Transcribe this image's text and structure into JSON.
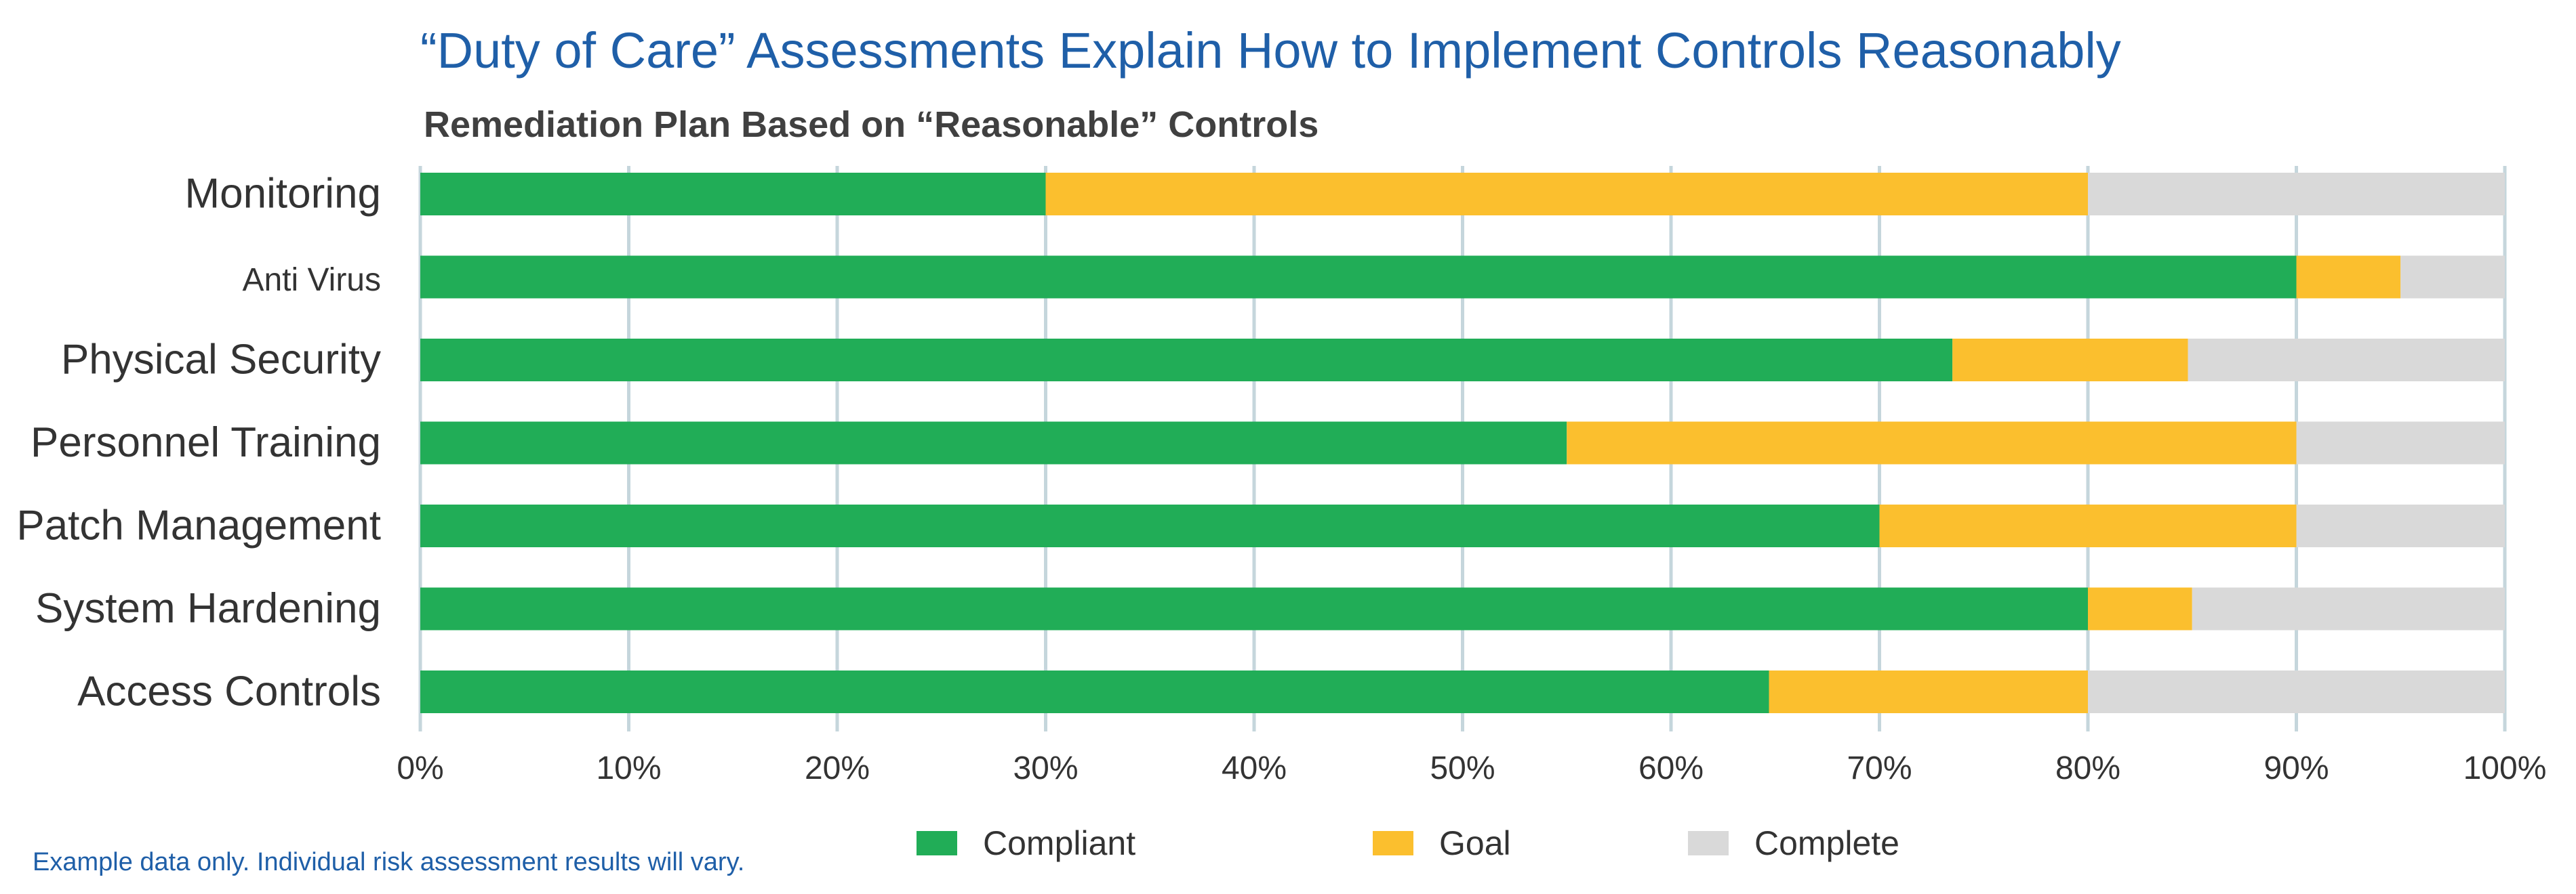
{
  "title": "“Duty of Care” Assessments Explain How to Implement Controls Reasonably",
  "subtitle": "Remediation Plan Based on “Reasonable” Controls",
  "note": "Example data only. Individual risk assessment results will vary.",
  "colors": {
    "compliant": "#21ad57",
    "goal": "#fbbf2e",
    "complete": "#d9d9d9",
    "grid": "#c5d6dc",
    "title": "#1f5fa8"
  },
  "legend": [
    {
      "name": "Compliant",
      "color": "#21ad57"
    },
    {
      "name": "Goal",
      "color": "#fbbf2e"
    },
    {
      "name": "Complete",
      "color": "#d9d9d9"
    }
  ],
  "chart_data": {
    "type": "bar",
    "orientation": "horizontal",
    "stacked": true,
    "title": "“Duty of Care” Assessments Explain How to Implement Controls Reasonably",
    "subtitle": "Remediation Plan Based on “Reasonable” Controls",
    "categories": [
      "Monitoring",
      "Anti Virus",
      "Physical Security",
      "Personnel Training",
      "Patch Management",
      "System Hardening",
      "Access Controls"
    ],
    "series": [
      {
        "name": "Compliant",
        "values": [
          30,
          90,
          73.5,
          55,
          70,
          80,
          64.7
        ]
      },
      {
        "name": "Goal",
        "values": [
          50,
          5,
          11.3,
          35,
          20,
          5,
          15.3
        ]
      },
      {
        "name": "Complete",
        "values": [
          20,
          5,
          15.2,
          10,
          10,
          15,
          20
        ]
      }
    ],
    "xlim": [
      0,
      100
    ],
    "xticks": [
      "0%",
      "10%",
      "20%",
      "30%",
      "40%",
      "50%",
      "60%",
      "70%",
      "80%",
      "90%",
      "100%"
    ],
    "grid": "vertical",
    "legend_position": "bottom"
  }
}
